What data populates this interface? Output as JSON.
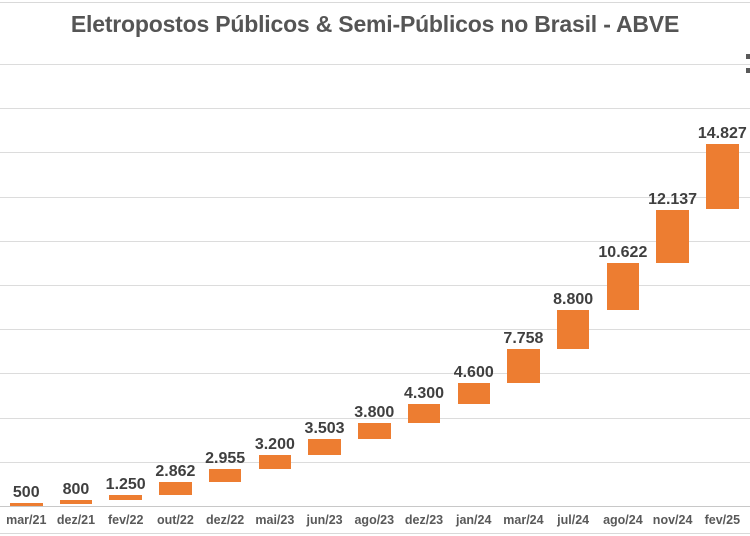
{
  "title": "Eletropostos Públicos & Semi-Públicos no Brasil - ABVE",
  "colors": {
    "bar": "#ED7D31",
    "title_text": "#555555",
    "value_label_text": "#3f3f3f",
    "axis_label_text": "#595959",
    "gridline": "#dcdcdc",
    "axis_line": "#c8c8c8",
    "separator": "#d9d9d9"
  },
  "chart_data": {
    "type": "bar",
    "subtype": "waterfall",
    "title": "Eletropostos Públicos & Semi-Públicos no Brasil - ABVE",
    "xlabel": "",
    "ylabel": "",
    "categories": [
      "mar/21",
      "dez/21",
      "fev/22",
      "out/22",
      "dez/22",
      "mai/23",
      "jun/23",
      "ago/23",
      "dez/23",
      "jan/24",
      "mar/24",
      "jul/24",
      "ago/24",
      "nov/24",
      "fev/25"
    ],
    "values": [
      500,
      800,
      1250,
      2862,
      2955,
      3200,
      3503,
      3800,
      4300,
      4600,
      7758,
      8800,
      10622,
      12137,
      14827
    ],
    "value_labels": [
      "500",
      "800",
      "1.250",
      "2.862",
      "2.955",
      "3.200",
      "3.503",
      "3.800",
      "4.300",
      "4.600",
      "7.758",
      "8.800",
      "10.622",
      "12.137",
      "14.827"
    ],
    "stacking": "each bar floats: its bottom sits at the cumulative sum of all previous values",
    "cumulative_totals": [
      500,
      1300,
      2550,
      5412,
      8367,
      11567,
      15070,
      18870,
      23170,
      27770,
      35528,
      44328,
      54950,
      67087,
      81914
    ],
    "y_axis": {
      "min": 0,
      "max": 100000,
      "gridline_step": 10000,
      "tick_labels_visible": false
    },
    "grid": true,
    "legend": "none"
  }
}
